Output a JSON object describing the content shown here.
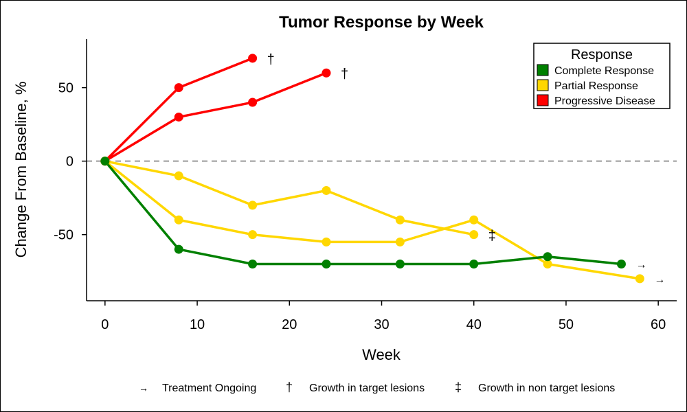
{
  "chart_data": {
    "type": "line",
    "title": "Tumor Response by Week",
    "xlabel": "Week",
    "ylabel": "Change From Baseline, %",
    "xlim": [
      -2,
      62
    ],
    "ylim": [
      -95,
      83
    ],
    "xticks": [
      0,
      10,
      20,
      30,
      40,
      50,
      60
    ],
    "yticks": [
      -50,
      0,
      50
    ],
    "reference_line": {
      "y": 0,
      "style": "dashed",
      "color": "#999999"
    },
    "legend": {
      "title": "Response",
      "position": "top-right",
      "entries": [
        {
          "label": "Complete Response",
          "color": "#008000"
        },
        {
          "label": "Partial Response",
          "color": "#FFD700"
        },
        {
          "label": "Progressive Disease",
          "color": "#FF0000"
        }
      ]
    },
    "series": [
      {
        "name": "Progressive Disease",
        "color": "#FF0000",
        "x": [
          0,
          8,
          16
        ],
        "y": [
          0,
          50,
          70
        ],
        "end_marker": "†"
      },
      {
        "name": "Progressive Disease",
        "color": "#FF0000",
        "x": [
          0,
          8,
          16,
          24
        ],
        "y": [
          0,
          30,
          40,
          60
        ],
        "end_marker": "†"
      },
      {
        "name": "Partial Response",
        "color": "#FFD700",
        "x": [
          0,
          8,
          16,
          24,
          32,
          40
        ],
        "y": [
          0,
          -10,
          -30,
          -20,
          -40,
          -50
        ],
        "end_marker": "‡"
      },
      {
        "name": "Partial Response",
        "color": "#FFD700",
        "x": [
          0,
          8,
          16,
          24,
          32,
          40,
          48,
          58
        ],
        "y": [
          0,
          -40,
          -50,
          -55,
          -55,
          -40,
          -70,
          -80
        ],
        "end_marker": "→"
      },
      {
        "name": "Complete Response",
        "color": "#008000",
        "x": [
          0,
          8,
          16,
          24,
          32,
          40,
          48,
          56
        ],
        "y": [
          0,
          -60,
          -70,
          -70,
          -70,
          -70,
          -65,
          -70
        ],
        "end_marker": "→"
      }
    ],
    "footnote": [
      {
        "symbol": "→",
        "label": "Treatment Ongoing"
      },
      {
        "symbol": "†",
        "label": "Growth in target lesions"
      },
      {
        "symbol": "‡",
        "label": "Growth in non target lesions"
      }
    ]
  }
}
